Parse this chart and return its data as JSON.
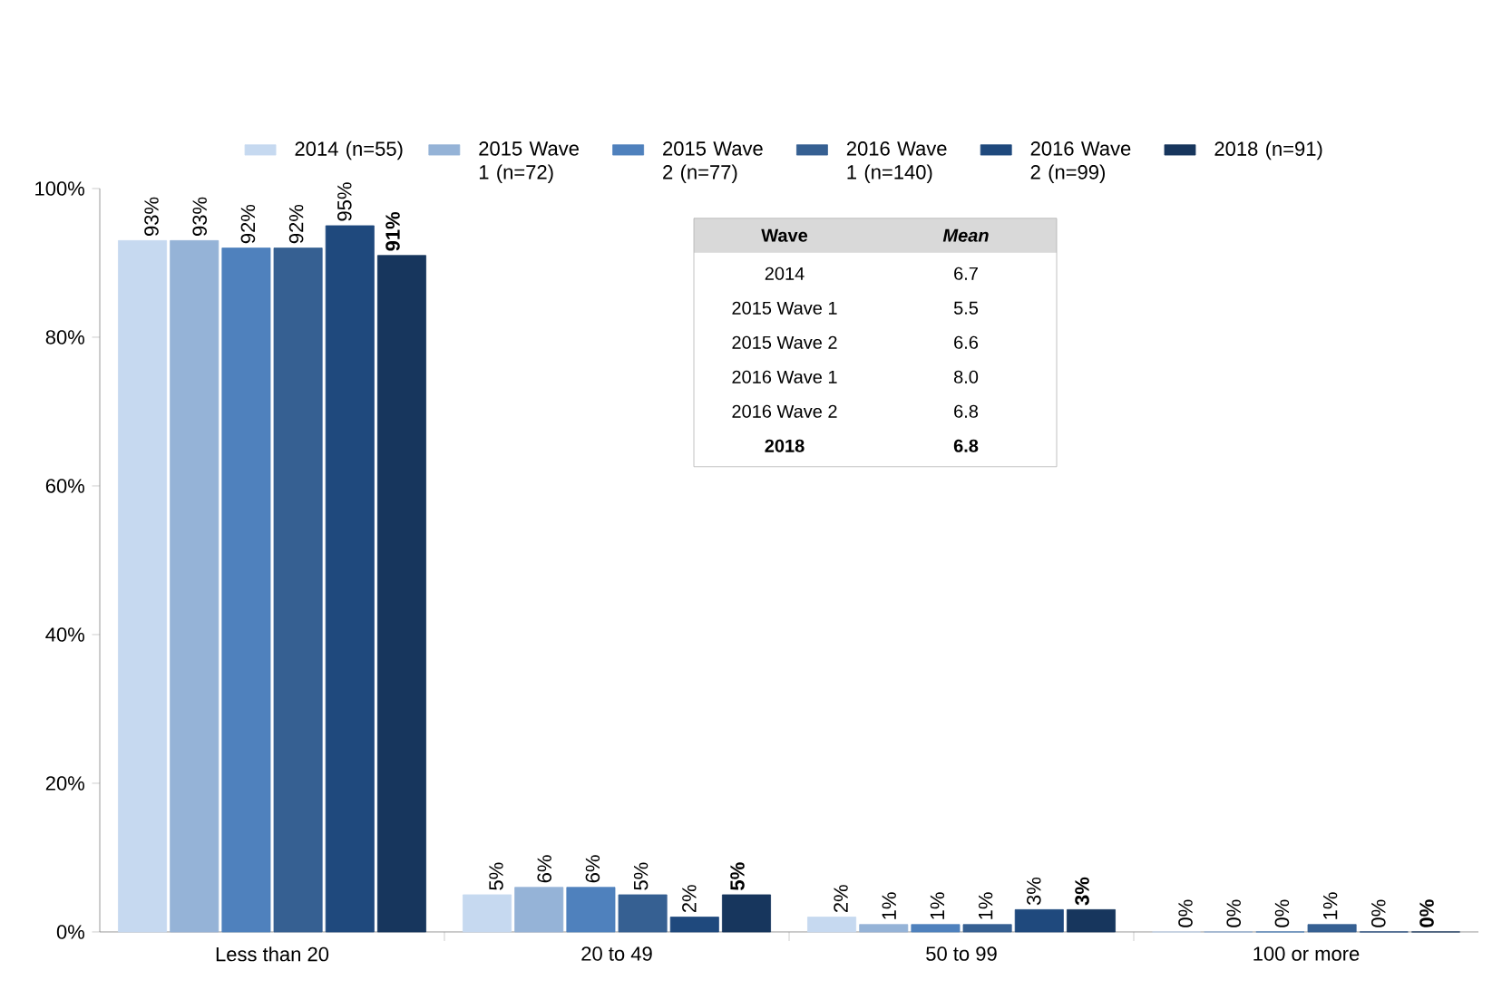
{
  "chart_data": {
    "type": "bar",
    "categories": [
      "Less than 20",
      "20 to 49",
      "50 to 99",
      "100 or more"
    ],
    "series": [
      {
        "name": "2014 (n=55)",
        "color": "#c6d9f0",
        "values": [
          93,
          5,
          2,
          0
        ],
        "value_labels": [
          "93%",
          "5%",
          "2%",
          "0%"
        ]
      },
      {
        "name": "2015 Wave 1 (n=72)",
        "color": "#95b3d7",
        "values": [
          93,
          6,
          1,
          0
        ],
        "value_labels": [
          "93%",
          "6%",
          "1%",
          "0%"
        ]
      },
      {
        "name": "2015 Wave 2 (n=77)",
        "color": "#4f81bd",
        "values": [
          92,
          6,
          1,
          0
        ],
        "value_labels": [
          "92%",
          "6%",
          "1%",
          "0%"
        ]
      },
      {
        "name": "2016 Wave 1 (n=140)",
        "color": "#366092",
        "values": [
          92,
          5,
          1,
          1
        ],
        "value_labels": [
          "92%",
          "5%",
          "1%",
          "1%"
        ]
      },
      {
        "name": "2016 Wave 2 (n=99)",
        "color": "#1f497d",
        "values": [
          95,
          2,
          3,
          0
        ],
        "value_labels": [
          "95%",
          "2%",
          "3%",
          "0%"
        ]
      },
      {
        "name": "2018 (n=91)",
        "color": "#17365d",
        "values": [
          91,
          5,
          3,
          0
        ],
        "value_labels": [
          "91%",
          "5%",
          "3%",
          "0%"
        ]
      }
    ],
    "ylim": [
      0,
      100
    ],
    "yticks": [
      {
        "value": 0,
        "label": "0%"
      },
      {
        "value": 20,
        "label": "20%"
      },
      {
        "value": 40,
        "label": "40%"
      },
      {
        "value": 60,
        "label": "60%"
      },
      {
        "value": 80,
        "label": "80%"
      },
      {
        "value": 100,
        "label": "100%"
      }
    ],
    "legend": "top",
    "grid": false,
    "annotations": [
      "Wave",
      "Mean",
      "2014",
      "6.7",
      "2015 Wave 1",
      "5.5",
      "2015 Wave 2",
      "6.6",
      "2016 Wave 1",
      "8.0",
      "2016 Wave 2",
      "6.8",
      "2018",
      "6.8"
    ]
  }
}
